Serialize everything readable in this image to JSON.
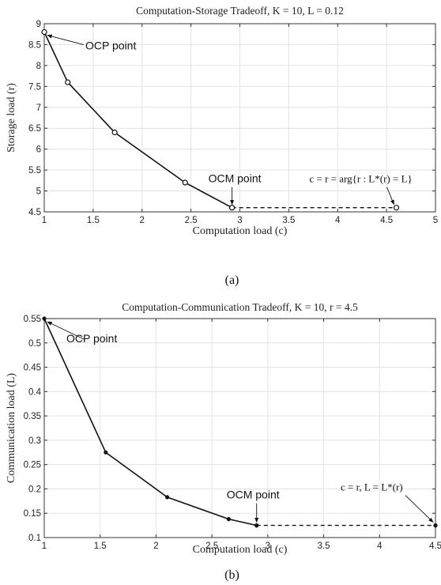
{
  "chart_data": [
    {
      "type": "line",
      "title": "Computation-Storage Tradeoff, K = 10, L = 0.12",
      "xlabel": "Computation load (c)",
      "ylabel": "Storage load (r)",
      "xlim": [
        1,
        5
      ],
      "ylim": [
        4.5,
        9
      ],
      "xticks": [
        1,
        1.5,
        2,
        2.5,
        3,
        3.5,
        4,
        4.5,
        5
      ],
      "xtick_labels": [
        "1",
        "1.5",
        "2",
        "2.5",
        "3",
        "3.5",
        "4",
        "4.5",
        "5"
      ],
      "yticks": [
        4.5,
        5,
        5.5,
        6,
        6.5,
        7,
        7.5,
        8,
        8.5,
        9
      ],
      "ytick_labels": [
        "4.5",
        "5",
        "5.5",
        "6",
        "6.5",
        "7",
        "7.5",
        "8",
        "8.5",
        "9"
      ],
      "grid": true,
      "marker": "circle",
      "series": [
        {
          "style": "solid",
          "x": [
            1,
            1.24,
            1.72,
            2.44,
            2.92
          ],
          "y": [
            8.8,
            7.6,
            6.4,
            5.2,
            4.6
          ]
        },
        {
          "style": "dashed",
          "x": [
            2.92,
            4.6
          ],
          "y": [
            4.6,
            4.6
          ]
        }
      ],
      "annotations": [
        {
          "text": "OCP point",
          "x": 1,
          "y": 8.8
        },
        {
          "text": "OCM point",
          "x": 2.92,
          "y": 4.6
        },
        {
          "text": "c = r = arg{r : L*(r) = L}",
          "x": 4.6,
          "y": 4.6
        }
      ],
      "caption": "(a)"
    },
    {
      "type": "line",
      "title": "Computation-Communication Tradeoff, K = 10, r = 4.5",
      "xlabel": "Computation load (c)",
      "ylabel": "Communication load (L)",
      "xlim": [
        1,
        4.5
      ],
      "ylim": [
        0.1,
        0.55
      ],
      "xticks": [
        1,
        1.5,
        2,
        2.5,
        3,
        3.5,
        4,
        4.5
      ],
      "xtick_labels": [
        "1",
        "1.5",
        "2",
        "2.5",
        "3",
        "3.5",
        "4",
        "4.5"
      ],
      "yticks": [
        0.1,
        0.15,
        0.2,
        0.25,
        0.3,
        0.35,
        0.4,
        0.45,
        0.5,
        0.55
      ],
      "ytick_labels": [
        "0.1",
        "0.15",
        "0.2",
        "0.25",
        "0.3",
        "0.35",
        "0.4",
        "0.45",
        "0.5",
        "0.55"
      ],
      "grid": true,
      "marker": "dot",
      "series": [
        {
          "style": "solid",
          "x": [
            1,
            1.55,
            2.1,
            2.65,
            2.9
          ],
          "y": [
            0.55,
            0.275,
            0.183,
            0.138,
            0.125
          ]
        },
        {
          "style": "dashed",
          "x": [
            2.9,
            4.5
          ],
          "y": [
            0.125,
            0.125
          ]
        }
      ],
      "annotations": [
        {
          "text": "OCP point",
          "x": 1,
          "y": 0.55
        },
        {
          "text": "OCM point",
          "x": 2.9,
          "y": 0.125
        },
        {
          "text": "c = r, L = L*(r)",
          "x": 4.5,
          "y": 0.125
        }
      ],
      "caption": "(b)"
    }
  ]
}
